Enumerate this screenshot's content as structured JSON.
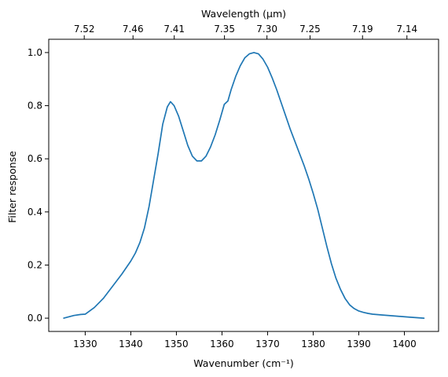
{
  "chart_data": {
    "type": "line",
    "xlabel": "Wavenumber (cm⁻¹)",
    "ylabel": "Filter response",
    "top_axis_label": "Wavelength (μm)",
    "xlim": [
      1322.0,
      1407.5
    ],
    "ylim": [
      -0.05,
      1.05
    ],
    "x_ticks": [
      1330,
      1340,
      1350,
      1360,
      1370,
      1380,
      1390,
      1400
    ],
    "x_tick_labels": [
      "1330",
      "1340",
      "1350",
      "1360",
      "1370",
      "1380",
      "1390",
      "1400"
    ],
    "y_ticks": [
      0.0,
      0.2,
      0.4,
      0.6,
      0.8,
      1.0
    ],
    "y_tick_labels": [
      "0.0",
      "0.2",
      "0.4",
      "0.6",
      "0.8",
      "1.0"
    ],
    "top_ticks": [
      7.52,
      7.46,
      7.41,
      7.35,
      7.3,
      7.25,
      7.19,
      7.14
    ],
    "top_tick_labels": [
      "7.52",
      "7.46",
      "7.41",
      "7.35",
      "7.30",
      "7.25",
      "7.19",
      "7.14"
    ],
    "line_color": "#1f77b4",
    "grid": false,
    "series": [
      {
        "x": [
          1325.3,
          1327.5,
          1329.0,
          1330.0,
          1332.0,
          1334.0,
          1336.0,
          1338.0,
          1340.0,
          1341.0,
          1342.0,
          1343.0,
          1344.0,
          1345.0,
          1346.0,
          1347.0,
          1348.0,
          1348.7,
          1349.5,
          1350.5,
          1351.5,
          1352.5,
          1353.5,
          1354.5,
          1355.5,
          1356.5,
          1357.5,
          1358.5,
          1359.5,
          1360.5,
          1361.3,
          1362.0,
          1363.0,
          1364.0,
          1365.0,
          1366.0,
          1367.0,
          1368.0,
          1369.0,
          1370.0,
          1371.0,
          1372.0,
          1373.0,
          1374.0,
          1375.0,
          1376.0,
          1377.0,
          1378.0,
          1379.0,
          1380.0,
          1381.0,
          1382.0,
          1383.0,
          1384.0,
          1385.0,
          1386.0,
          1387.0,
          1388.0,
          1389.0,
          1390.0,
          1391.0,
          1392.0,
          1393.0,
          1395.0,
          1398.0,
          1401.0,
          1404.3
        ],
        "y": [
          0.0,
          0.01,
          0.014,
          0.015,
          0.04,
          0.075,
          0.12,
          0.165,
          0.215,
          0.245,
          0.285,
          0.34,
          0.42,
          0.52,
          0.62,
          0.73,
          0.795,
          0.815,
          0.8,
          0.76,
          0.705,
          0.65,
          0.61,
          0.592,
          0.592,
          0.61,
          0.645,
          0.69,
          0.745,
          0.805,
          0.818,
          0.86,
          0.91,
          0.95,
          0.98,
          0.995,
          1.0,
          0.995,
          0.975,
          0.945,
          0.905,
          0.86,
          0.81,
          0.76,
          0.71,
          0.665,
          0.62,
          0.575,
          0.525,
          0.47,
          0.41,
          0.34,
          0.27,
          0.205,
          0.15,
          0.108,
          0.074,
          0.05,
          0.036,
          0.027,
          0.022,
          0.018,
          0.015,
          0.012,
          0.008,
          0.004,
          0.0
        ]
      }
    ]
  }
}
